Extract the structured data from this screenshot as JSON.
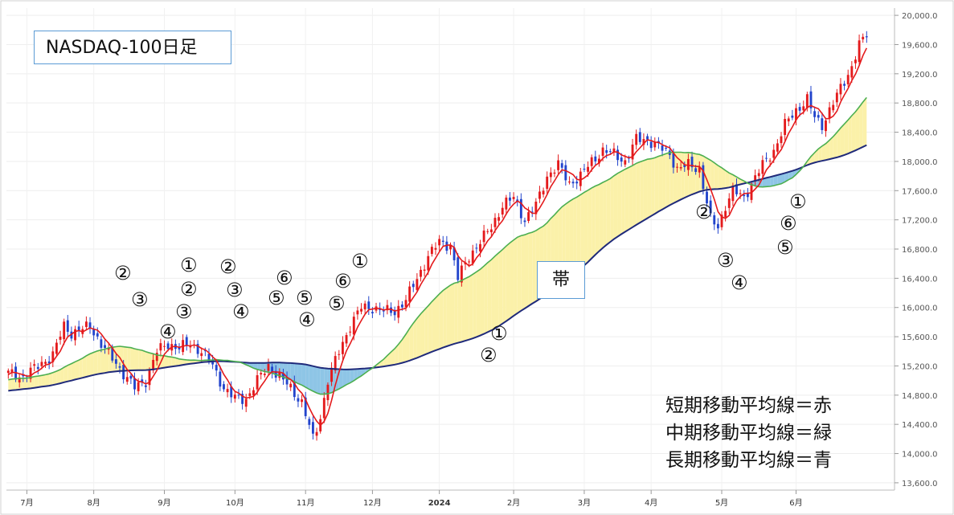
{
  "title": "NASDAQ-100日足",
  "band_label": "帯",
  "legend": [
    "短期移動平均線＝赤",
    "中期移動平均線＝緑",
    "長期移動平均線＝青"
  ],
  "annotations": [
    "②",
    "③",
    "①",
    "②",
    "③",
    "④",
    "②",
    "③",
    "④",
    "⑥",
    "⑤",
    "⑤",
    "④",
    "①",
    "⑥",
    "⑤",
    "①",
    "②",
    "②",
    "③",
    "④",
    "①",
    "⑥",
    "⑤"
  ],
  "colors": {
    "short_ma": "#e41a1c",
    "mid_ma": "#4caf50",
    "long_ma": "#1f2a7a",
    "band_fill": "#fbf1a9",
    "band_fill_inverted": "#8ec5e6",
    "candle_up": "#e41a1c",
    "candle_down": "#2244cc"
  },
  "chart_data": {
    "type": "candlestick",
    "title": "NASDAQ-100日足",
    "x_tick_labels": [
      "7月",
      "8月",
      "9月",
      "10月",
      "11月",
      "12月",
      "2024",
      "2月",
      "3月",
      "4月",
      "5月",
      "6月"
    ],
    "y_tick_labels": [
      "20,000.0",
      "19,600.0",
      "19,200.0",
      "18,800.0",
      "18,400.0",
      "18,000.0",
      "17,600.0",
      "17,200.0",
      "16,800.0",
      "16,400.0",
      "16,000.0",
      "15,600.0",
      "15,200.0",
      "14,800.0",
      "14,400.0",
      "14,000.0",
      "13,600.0"
    ],
    "ylim": [
      13500,
      20100
    ],
    "y_ticks": [
      20000,
      19600,
      19200,
      18800,
      18400,
      18000,
      17600,
      17200,
      16800,
      16400,
      16000,
      15600,
      15200,
      14800,
      14400,
      14000,
      13600
    ],
    "x_tick_days": [
      5,
      23,
      42,
      61,
      80,
      98,
      116,
      136,
      155,
      173,
      192,
      212
    ],
    "close_anchors": [
      [
        0,
        15100
      ],
      [
        4,
        15050
      ],
      [
        8,
        15200
      ],
      [
        12,
        15350
      ],
      [
        15,
        15750
      ],
      [
        17,
        15650
      ],
      [
        20,
        15700
      ],
      [
        22,
        15750
      ],
      [
        25,
        15500
      ],
      [
        28,
        15300
      ],
      [
        31,
        15100
      ],
      [
        34,
        14900
      ],
      [
        37,
        15000
      ],
      [
        40,
        15400
      ],
      [
        43,
        15500
      ],
      [
        46,
        15450
      ],
      [
        49,
        15500
      ],
      [
        52,
        15400
      ],
      [
        55,
        15200
      ],
      [
        58,
        14900
      ],
      [
        61,
        14750
      ],
      [
        64,
        14750
      ],
      [
        67,
        15000
      ],
      [
        70,
        15200
      ],
      [
        73,
        15050
      ],
      [
        76,
        14900
      ],
      [
        79,
        14700
      ],
      [
        82,
        14200
      ],
      [
        84,
        14500
      ],
      [
        86,
        15000
      ],
      [
        89,
        15400
      ],
      [
        92,
        15750
      ],
      [
        95,
        16000
      ],
      [
        98,
        16000
      ],
      [
        101,
        15950
      ],
      [
        104,
        15950
      ],
      [
        107,
        16100
      ],
      [
        110,
        16400
      ],
      [
        113,
        16700
      ],
      [
        116,
        16900
      ],
      [
        119,
        16850
      ],
      [
        121,
        16400
      ],
      [
        124,
        16700
      ],
      [
        127,
        16900
      ],
      [
        130,
        17100
      ],
      [
        133,
        17400
      ],
      [
        136,
        17500
      ],
      [
        139,
        17200
      ],
      [
        142,
        17400
      ],
      [
        145,
        17800
      ],
      [
        148,
        17950
      ],
      [
        151,
        17700
      ],
      [
        154,
        17800
      ],
      [
        157,
        18000
      ],
      [
        160,
        18150
      ],
      [
        163,
        18100
      ],
      [
        166,
        18000
      ],
      [
        169,
        18300
      ],
      [
        172,
        18300
      ],
      [
        175,
        18200
      ],
      [
        178,
        18100
      ],
      [
        180,
        17900
      ],
      [
        183,
        17950
      ],
      [
        186,
        17900
      ],
      [
        189,
        17200
      ],
      [
        191,
        17100
      ],
      [
        193,
        17400
      ],
      [
        195,
        17600
      ],
      [
        198,
        17500
      ],
      [
        200,
        17700
      ],
      [
        203,
        17950
      ],
      [
        206,
        18150
      ],
      [
        209,
        18500
      ],
      [
        212,
        18700
      ],
      [
        215,
        18850
      ],
      [
        217,
        18600
      ],
      [
        219,
        18500
      ],
      [
        221,
        18700
      ],
      [
        223,
        18900
      ],
      [
        225,
        19100
      ],
      [
        227,
        19300
      ],
      [
        229,
        19600
      ],
      [
        231,
        19700
      ]
    ],
    "short_ma_period": 5,
    "mid_ma_period": 25,
    "long_ma_period": 75,
    "last_day": 231
  }
}
